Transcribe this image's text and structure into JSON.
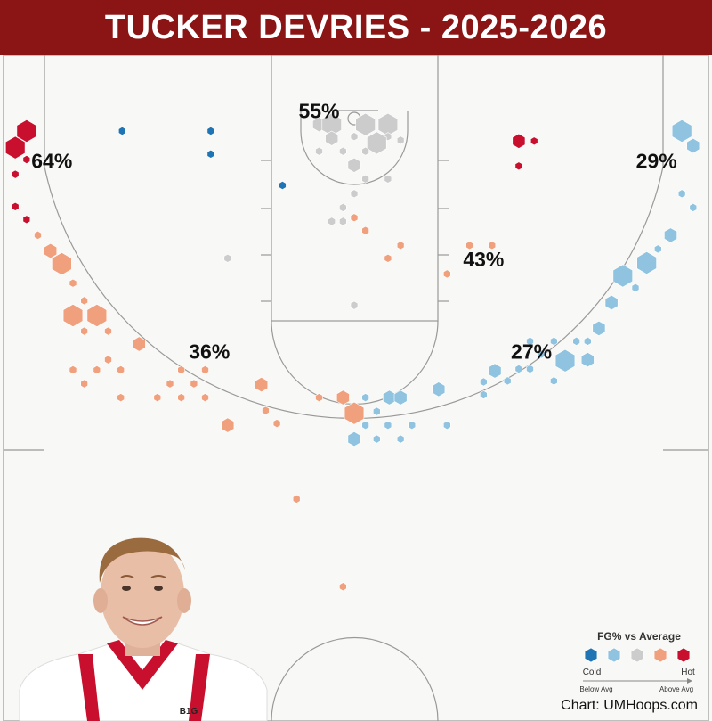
{
  "header": {
    "title": "TUCKER DEVRIES - 2025-2026"
  },
  "credit": "Chart: UMHoops.com",
  "colors": {
    "cold": "#1f74b4",
    "below": "#8fc3e0",
    "average": "#cccccc",
    "above": "#f0a07c",
    "hot": "#c8102e",
    "court_bg": "#f8f8f6",
    "court_line": "#999999",
    "header_bg": "#8b1414"
  },
  "legend": {
    "title": "FG% vs Average",
    "cold_label": "Cold",
    "hot_label": "Hot",
    "below_label": "Below Avg",
    "above_label": "Above Avg",
    "levels": [
      "cold",
      "below",
      "average",
      "above",
      "hot"
    ]
  },
  "player_image": {
    "icon": "player-headshot",
    "jersey_text": "B1G"
  },
  "chart_data": {
    "type": "scatter",
    "title": "TUCKER DEVRIES - 2025-2026",
    "x_unit": "feet from basket (left/right)",
    "y_unit": "feet from baseline",
    "xlim": [
      -25,
      25
    ],
    "ylim": [
      0,
      47
    ],
    "grid": false,
    "legend_position": "bottom-right",
    "zones": [
      {
        "name": "left-corner",
        "label": "64%",
        "x": -21.5,
        "y": 9.6
      },
      {
        "name": "paint",
        "label": "55%",
        "x": -2.5,
        "y": 4.2
      },
      {
        "name": "right-corner",
        "label": "29%",
        "x": 21.5,
        "y": 9.6
      },
      {
        "name": "right-mid",
        "label": "43%",
        "x": 9.2,
        "y": 20.3
      },
      {
        "name": "left-wing",
        "label": "36%",
        "x": -10.3,
        "y": 30.3
      },
      {
        "name": "right-wing",
        "label": "27%",
        "x": 12.6,
        "y": 30.3
      }
    ],
    "shots": [
      {
        "x": -23.3,
        "y": 5.6,
        "size": 5,
        "level": "hot"
      },
      {
        "x": -24.1,
        "y": 7.4,
        "size": 5,
        "level": "hot"
      },
      {
        "x": -23.3,
        "y": 8.7,
        "size": 1,
        "level": "hot"
      },
      {
        "x": -24.1,
        "y": 10.3,
        "size": 1,
        "level": "hot"
      },
      {
        "x": -24.1,
        "y": 13.8,
        "size": 1,
        "level": "hot"
      },
      {
        "x": -23.3,
        "y": 15.2,
        "size": 1,
        "level": "hot"
      },
      {
        "x": -22.5,
        "y": 16.9,
        "size": 1,
        "level": "above"
      },
      {
        "x": -21.6,
        "y": 18.6,
        "size": 3,
        "level": "above"
      },
      {
        "x": -20.8,
        "y": 20.0,
        "size": 5,
        "level": "above"
      },
      {
        "x": -20.0,
        "y": 22.1,
        "size": 1,
        "level": "above"
      },
      {
        "x": -19.2,
        "y": 24.0,
        "size": 1,
        "level": "above"
      },
      {
        "x": -20.0,
        "y": 25.6,
        "size": 5,
        "level": "above"
      },
      {
        "x": -18.3,
        "y": 25.6,
        "size": 5,
        "level": "above"
      },
      {
        "x": -19.2,
        "y": 27.3,
        "size": 1,
        "level": "above"
      },
      {
        "x": -17.5,
        "y": 27.3,
        "size": 1,
        "level": "above"
      },
      {
        "x": -15.3,
        "y": 28.7,
        "size": 3,
        "level": "above"
      },
      {
        "x": -17.5,
        "y": 30.4,
        "size": 1,
        "level": "above"
      },
      {
        "x": -20.0,
        "y": 31.5,
        "size": 1,
        "level": "above"
      },
      {
        "x": -18.3,
        "y": 31.5,
        "size": 1,
        "level": "above"
      },
      {
        "x": -16.6,
        "y": 31.5,
        "size": 1,
        "level": "above"
      },
      {
        "x": -12.3,
        "y": 31.5,
        "size": 1,
        "level": "above"
      },
      {
        "x": -19.2,
        "y": 33.0,
        "size": 1,
        "level": "above"
      },
      {
        "x": -13.1,
        "y": 33.0,
        "size": 1,
        "level": "above"
      },
      {
        "x": -11.4,
        "y": 33.0,
        "size": 1,
        "level": "above"
      },
      {
        "x": -10.6,
        "y": 31.5,
        "size": 1,
        "level": "above"
      },
      {
        "x": -16.6,
        "y": 34.5,
        "size": 1,
        "level": "above"
      },
      {
        "x": -14.0,
        "y": 34.5,
        "size": 1,
        "level": "above"
      },
      {
        "x": -12.3,
        "y": 34.5,
        "size": 1,
        "level": "above"
      },
      {
        "x": -10.6,
        "y": 34.5,
        "size": 1,
        "level": "above"
      },
      {
        "x": -6.6,
        "y": 33.1,
        "size": 3,
        "level": "above"
      },
      {
        "x": -6.3,
        "y": 35.9,
        "size": 1,
        "level": "above"
      },
      {
        "x": -5.5,
        "y": 37.3,
        "size": 1,
        "level": "above"
      },
      {
        "x": -9.0,
        "y": 37.5,
        "size": 3,
        "level": "above"
      },
      {
        "x": -2.5,
        "y": 34.5,
        "size": 1,
        "level": "above"
      },
      {
        "x": -0.8,
        "y": 34.5,
        "size": 3,
        "level": "above"
      },
      {
        "x": 0.0,
        "y": 36.2,
        "size": 5,
        "level": "above"
      },
      {
        "x": -4.1,
        "y": 45.5,
        "size": 1,
        "level": "above"
      },
      {
        "x": -0.8,
        "y": 55.0,
        "size": 1,
        "level": "above"
      },
      {
        "x": 0.0,
        "y": 15.0,
        "size": 1,
        "level": "above"
      },
      {
        "x": 0.8,
        "y": 16.4,
        "size": 1,
        "level": "above"
      },
      {
        "x": 3.3,
        "y": 18.0,
        "size": 1,
        "level": "above"
      },
      {
        "x": 2.4,
        "y": 19.4,
        "size": 1,
        "level": "above"
      },
      {
        "x": 8.2,
        "y": 18.0,
        "size": 1,
        "level": "above"
      },
      {
        "x": 9.8,
        "y": 18.0,
        "size": 1,
        "level": "above"
      },
      {
        "x": 6.6,
        "y": 21.1,
        "size": 1,
        "level": "above"
      },
      {
        "x": -2.5,
        "y": 4.9,
        "size": 3,
        "level": "average"
      },
      {
        "x": -1.6,
        "y": 4.9,
        "size": 5,
        "level": "average"
      },
      {
        "x": 0.8,
        "y": 4.9,
        "size": 5,
        "level": "average"
      },
      {
        "x": 2.4,
        "y": 4.9,
        "size": 5,
        "level": "average"
      },
      {
        "x": -1.6,
        "y": 6.3,
        "size": 1,
        "level": "average"
      },
      {
        "x": 0.0,
        "y": 6.2,
        "size": 1,
        "level": "average"
      },
      {
        "x": 2.4,
        "y": 6.2,
        "size": 1,
        "level": "average"
      },
      {
        "x": -1.6,
        "y": 6.4,
        "size": 3,
        "level": "average"
      },
      {
        "x": 1.6,
        "y": 6.9,
        "size": 5,
        "level": "average"
      },
      {
        "x": 3.3,
        "y": 6.6,
        "size": 1,
        "level": "average"
      },
      {
        "x": -2.5,
        "y": 7.8,
        "size": 1,
        "level": "average"
      },
      {
        "x": -0.8,
        "y": 7.8,
        "size": 1,
        "level": "average"
      },
      {
        "x": 0.8,
        "y": 7.8,
        "size": 1,
        "level": "average"
      },
      {
        "x": 0.0,
        "y": 9.3,
        "size": 3,
        "level": "average"
      },
      {
        "x": 0.8,
        "y": 10.8,
        "size": 1,
        "level": "average"
      },
      {
        "x": 2.4,
        "y": 10.8,
        "size": 1,
        "level": "average"
      },
      {
        "x": 0.0,
        "y": 12.4,
        "size": 1,
        "level": "average"
      },
      {
        "x": -0.8,
        "y": 13.9,
        "size": 1,
        "level": "average"
      },
      {
        "x": -1.6,
        "y": 15.4,
        "size": 1,
        "level": "average"
      },
      {
        "x": -0.8,
        "y": 15.4,
        "size": 1,
        "level": "average"
      },
      {
        "x": -9.0,
        "y": 19.4,
        "size": 1,
        "level": "average"
      },
      {
        "x": 0.0,
        "y": 24.5,
        "size": 1,
        "level": "average"
      },
      {
        "x": 23.3,
        "y": 5.6,
        "size": 5,
        "level": "below"
      },
      {
        "x": 24.1,
        "y": 7.2,
        "size": 3,
        "level": "below"
      },
      {
        "x": 23.3,
        "y": 12.4,
        "size": 1,
        "level": "below"
      },
      {
        "x": 24.1,
        "y": 13.9,
        "size": 1,
        "level": "below"
      },
      {
        "x": 22.5,
        "y": 16.9,
        "size": 3,
        "level": "below"
      },
      {
        "x": 21.6,
        "y": 18.4,
        "size": 1,
        "level": "below"
      },
      {
        "x": 20.8,
        "y": 19.9,
        "size": 5,
        "level": "below"
      },
      {
        "x": 19.1,
        "y": 21.3,
        "size": 5,
        "level": "below"
      },
      {
        "x": 20.0,
        "y": 22.6,
        "size": 1,
        "level": "below"
      },
      {
        "x": 18.3,
        "y": 24.2,
        "size": 3,
        "level": "below"
      },
      {
        "x": 17.4,
        "y": 27.0,
        "size": 3,
        "level": "below"
      },
      {
        "x": 16.6,
        "y": 28.4,
        "size": 1,
        "level": "below"
      },
      {
        "x": 15.8,
        "y": 28.4,
        "size": 1,
        "level": "below"
      },
      {
        "x": 14.2,
        "y": 28.4,
        "size": 1,
        "level": "below"
      },
      {
        "x": 12.5,
        "y": 28.4,
        "size": 1,
        "level": "below"
      },
      {
        "x": 15.0,
        "y": 29.8,
        "size": 1,
        "level": "below"
      },
      {
        "x": 13.3,
        "y": 29.8,
        "size": 1,
        "level": "below"
      },
      {
        "x": 12.5,
        "y": 31.4,
        "size": 1,
        "level": "below"
      },
      {
        "x": 15.0,
        "y": 30.5,
        "size": 5,
        "level": "below"
      },
      {
        "x": 16.6,
        "y": 30.4,
        "size": 3,
        "level": "below"
      },
      {
        "x": 11.7,
        "y": 31.4,
        "size": 1,
        "level": "below"
      },
      {
        "x": 10.9,
        "y": 32.7,
        "size": 1,
        "level": "below"
      },
      {
        "x": 14.2,
        "y": 32.7,
        "size": 1,
        "level": "below"
      },
      {
        "x": 10.0,
        "y": 31.6,
        "size": 3,
        "level": "below"
      },
      {
        "x": 9.2,
        "y": 34.2,
        "size": 1,
        "level": "below"
      },
      {
        "x": 9.2,
        "y": 32.8,
        "size": 1,
        "level": "below"
      },
      {
        "x": 6.0,
        "y": 33.6,
        "size": 3,
        "level": "below"
      },
      {
        "x": 2.5,
        "y": 34.5,
        "size": 3,
        "level": "below"
      },
      {
        "x": 3.3,
        "y": 34.5,
        "size": 3,
        "level": "below"
      },
      {
        "x": 0.8,
        "y": 34.5,
        "size": 1,
        "level": "below"
      },
      {
        "x": 1.6,
        "y": 36.0,
        "size": 1,
        "level": "below"
      },
      {
        "x": 0.8,
        "y": 37.5,
        "size": 1,
        "level": "below"
      },
      {
        "x": 2.4,
        "y": 37.5,
        "size": 1,
        "level": "below"
      },
      {
        "x": 4.1,
        "y": 37.5,
        "size": 1,
        "level": "below"
      },
      {
        "x": 6.6,
        "y": 37.5,
        "size": 1,
        "level": "below"
      },
      {
        "x": 0.0,
        "y": 39.0,
        "size": 3,
        "level": "below"
      },
      {
        "x": 1.6,
        "y": 39.0,
        "size": 1,
        "level": "below"
      },
      {
        "x": 3.3,
        "y": 39.0,
        "size": 1,
        "level": "below"
      },
      {
        "x": -16.5,
        "y": 5.6,
        "size": 1,
        "level": "cold"
      },
      {
        "x": -10.2,
        "y": 5.6,
        "size": 1,
        "level": "cold"
      },
      {
        "x": -10.2,
        "y": 8.1,
        "size": 1,
        "level": "cold"
      },
      {
        "x": -5.1,
        "y": 11.5,
        "size": 1,
        "level": "cold"
      },
      {
        "x": 11.7,
        "y": 6.7,
        "size": 3,
        "level": "hot"
      },
      {
        "x": 12.8,
        "y": 6.7,
        "size": 1,
        "level": "hot"
      },
      {
        "x": 11.7,
        "y": 9.4,
        "size": 1,
        "level": "hot"
      }
    ]
  }
}
